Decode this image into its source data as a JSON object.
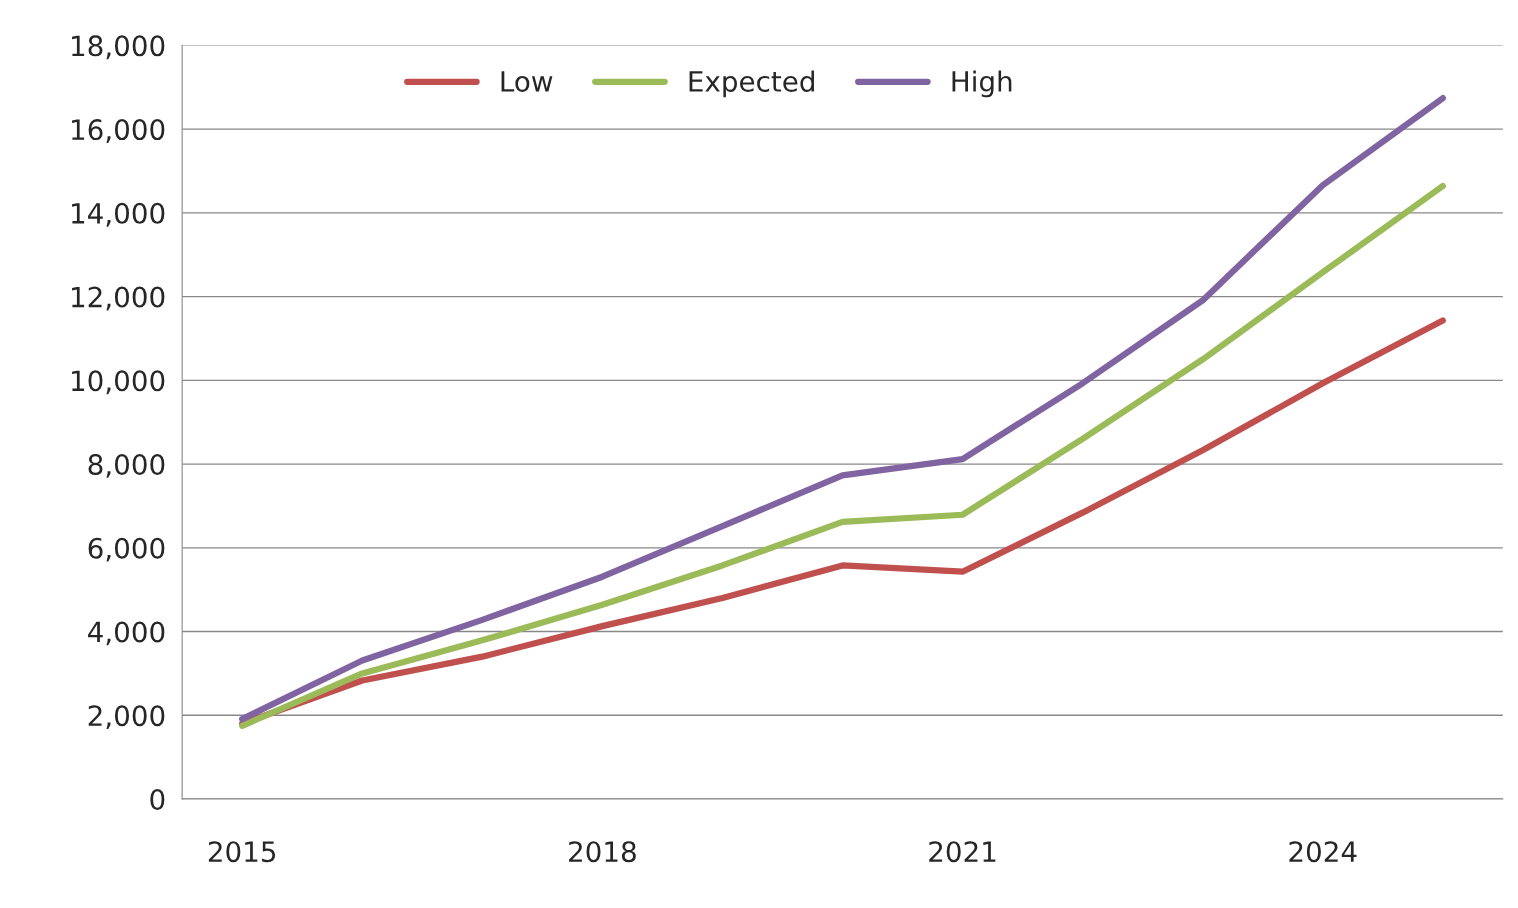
{
  "chart_data": {
    "type": "line",
    "categories": [
      "2015",
      null,
      null,
      "2018",
      null,
      null,
      "2021",
      null,
      null,
      "2024",
      null
    ],
    "series": [
      {
        "name": "Low",
        "color": "#c0504d",
        "values": [
          1800,
          2830,
          3400,
          4130,
          4800,
          5580,
          5430,
          6840,
          8330,
          9930,
          11430
        ]
      },
      {
        "name": "Expected",
        "color": "#9bbb59",
        "values": [
          1750,
          3000,
          3790,
          4640,
          5580,
          6620,
          6790,
          8600,
          10500,
          12580,
          14640
        ]
      },
      {
        "name": "High",
        "color": "#8064a2",
        "values": [
          1910,
          3310,
          4280,
          5310,
          6520,
          7730,
          8120,
          9930,
          11910,
          14660,
          16740
        ]
      }
    ],
    "ylim": [
      0,
      18000
    ],
    "yticks": [
      {
        "value": 0,
        "label": "0"
      },
      {
        "value": 2000,
        "label": "2,000"
      },
      {
        "value": 4000,
        "label": "4,000"
      },
      {
        "value": 6000,
        "label": "6,000"
      },
      {
        "value": 8000,
        "label": "8,000"
      },
      {
        "value": 10000,
        "label": "10,000"
      },
      {
        "value": 12000,
        "label": "12,000"
      },
      {
        "value": 14000,
        "label": "14,000"
      },
      {
        "value": 16000,
        "label": "16,000"
      },
      {
        "value": 18000,
        "label": "18,000"
      }
    ],
    "grid": "y",
    "legend": "top",
    "line_style": "solid",
    "marker": "none"
  }
}
